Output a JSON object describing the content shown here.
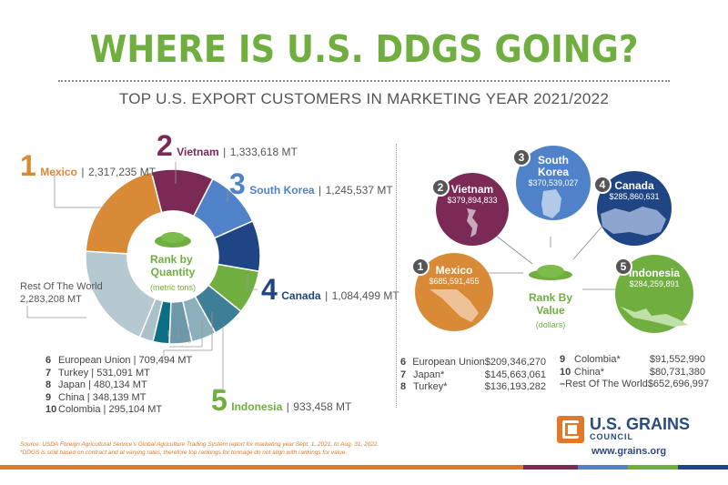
{
  "header": {
    "title": "WHERE IS U.S. DDGS GOING?",
    "subtitle": "TOP U.S. EXPORT CUSTOMERS IN MARKETING YEAR 2021/2022"
  },
  "quantity": {
    "center_title": "Rank by Quantity",
    "center_unit": "(metric tons)",
    "top5": [
      {
        "rank": "1",
        "name": "Mexico",
        "value": "2,317,235 MT"
      },
      {
        "rank": "2",
        "name": "Vietnam",
        "value": "1,333,618 MT"
      },
      {
        "rank": "3",
        "name": "South Korea",
        "value": "1,245,537 MT"
      },
      {
        "rank": "4",
        "name": "Canada",
        "value": "1,084,499 MT"
      },
      {
        "rank": "5",
        "name": "Indonesia",
        "value": "933,458 MT"
      }
    ],
    "rest": {
      "name": "Rest Of The World",
      "value": "2,283,208 MT"
    },
    "others": [
      {
        "rank": "6",
        "name": "European Union",
        "value": "709,494 MT"
      },
      {
        "rank": "7",
        "name": "Turkey",
        "value": "531,091 MT"
      },
      {
        "rank": "8",
        "name": "Japan",
        "value": "480,134 MT"
      },
      {
        "rank": "9",
        "name": "China",
        "value": "348,139 MT"
      },
      {
        "rank": "10",
        "name": "Colombia",
        "value": "295,104 MT"
      }
    ]
  },
  "value": {
    "center_title_1": "Rank By",
    "center_title_2": "Value",
    "center_unit": "(dollars)",
    "top5": [
      {
        "rank": "1",
        "name": "Mexico",
        "value": "$685,591,455"
      },
      {
        "rank": "2",
        "name": "Vietnam",
        "value": "$379,894,833"
      },
      {
        "rank": "3",
        "name_1": "South",
        "name_2": "Korea",
        "value": "$370,539,027"
      },
      {
        "rank": "4",
        "name": "Canada",
        "value": "$285,860,631"
      },
      {
        "rank": "5",
        "name": "Indonesia",
        "value": "$284,259,891"
      }
    ],
    "others_left": [
      {
        "rank": "6",
        "name": "European Union",
        "value": "$209,346,270"
      },
      {
        "rank": "7",
        "name": "Japan*",
        "value": "$145,663,061"
      },
      {
        "rank": "8",
        "name": "Turkey*",
        "value": "$136,193,282"
      }
    ],
    "others_right": [
      {
        "rank": "9",
        "name": "Colombia*",
        "value": "$91,552,990"
      },
      {
        "rank": "10",
        "name": "China*",
        "value": "$80,731,380"
      },
      {
        "rank": "–",
        "name": "Rest Of The World",
        "value": "$652,696,997"
      }
    ]
  },
  "chart_data": {
    "type": "pie",
    "title": "Rank by Quantity",
    "unit": "(metric tons)",
    "categories": [
      "Mexico",
      "Vietnam",
      "South Korea",
      "Canada",
      "Indonesia",
      "European Union",
      "Turkey",
      "Japan",
      "China",
      "Colombia",
      "Rest Of The World"
    ],
    "values": [
      2317235,
      1333618,
      1245537,
      1084499,
      933458,
      709494,
      531091,
      480134,
      348139,
      295104,
      2283208
    ],
    "colors": [
      "#d98a36",
      "#7a2a55",
      "#4f82c8",
      "#1f4585",
      "#6fae3f",
      "#3e7e96",
      "#8bb0bc",
      "#6e98a8",
      "#0c6f86",
      "#a9c1c9",
      "#b6c8d0"
    ]
  },
  "footer": {
    "source": "Source: USDA Foreign Agricultural Service's Global Agriculture Trading System report for marketing year Sept. 1, 2021, to Aug. 31, 2022.",
    "note": "*DDGS is sold based on contract and at varying rates, therefore top rankings for tonnage do not align with rankings for value.",
    "logo_line1": "U.S. GRAINS",
    "logo_line2": "COUNCIL",
    "url": "www.grains.org",
    "bar_colors": [
      "#e07a2a",
      "#7a2a55",
      "#4f82c8",
      "#6fae3f",
      "#1f4585"
    ]
  }
}
